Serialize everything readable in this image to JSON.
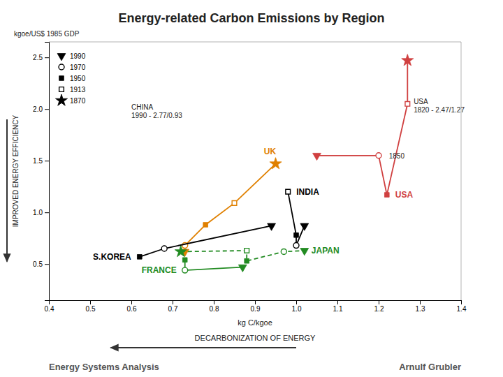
{
  "chart_data": {
    "type": "line",
    "title": "Energy-related Carbon Emissions by Region",
    "xlabel": "kg C/kgoe",
    "xlabel2": "DECARBONIZATION OF ENERGY",
    "ylabel": "IMPROVED ENERGY EFFICIENCY",
    "ylabel_unit": "kgoe/US$ 1985 GDP",
    "footer_left": "Energy Systems Analysis",
    "footer_right": "Arnulf Grubler",
    "xlim": [
      0.4,
      1.4
    ],
    "ylim": [
      0.15,
      2.65
    ],
    "xticks": [
      0.4,
      0.5,
      0.6,
      0.7,
      0.8,
      0.9,
      {
        "value": 1.0,
        "label": "1.0"
      },
      1.1,
      1.2,
      1.3,
      1.4
    ],
    "yticks": [
      0.5,
      {
        "value": 1.0,
        "label": "1.0"
      },
      1.5,
      {
        "value": 2.0,
        "label": "2.0"
      },
      2.5
    ],
    "grid": false,
    "marker_legend": [
      {
        "year": 1990,
        "marker": "triangle-down"
      },
      {
        "year": 1970,
        "marker": "circle-open"
      },
      {
        "year": 1950,
        "marker": "square"
      },
      {
        "year": 1913,
        "marker": "square-open"
      },
      {
        "year": 1870,
        "marker": "star"
      }
    ],
    "series": [
      {
        "name": "USA",
        "color": "#d04040",
        "line_style": "solid",
        "years": [
          1870,
          1913,
          1950,
          1970,
          1990
        ],
        "x": [
          1.27,
          1.27,
          1.22,
          1.2,
          1.05
        ],
        "values": [
          2.47,
          2.05,
          1.17,
          1.55,
          1.55
        ]
      },
      {
        "name": "UK",
        "color": "#e08000",
        "line_style": "solid",
        "years": [
          1870,
          1913,
          1950,
          1970,
          1990
        ],
        "x": [
          0.95,
          0.85,
          0.78,
          0.73,
          0.73
        ],
        "values": [
          1.47,
          1.09,
          0.88,
          0.68,
          0.62
        ]
      },
      {
        "name": "INDIA",
        "color": "#000000",
        "line_style": "solid",
        "years": [
          1913,
          1950,
          1970,
          1990
        ],
        "x": [
          0.98,
          1.0,
          1.0,
          1.02
        ],
        "values": [
          1.2,
          0.78,
          0.68,
          0.87
        ]
      },
      {
        "name": "JAPAN",
        "color": "#228B22",
        "line_style": "dashed",
        "years": [
          1870,
          1913,
          1950,
          1970,
          1990
        ],
        "x": [
          0.72,
          0.88,
          0.88,
          0.97,
          1.02
        ],
        "values": [
          0.62,
          0.63,
          0.53,
          0.62,
          0.63
        ]
      },
      {
        "name": "S.KOREA",
        "color": "#000000",
        "line_style": "solid",
        "years": [
          1950,
          1970,
          1990
        ],
        "x": [
          0.62,
          0.68,
          0.94
        ],
        "values": [
          0.57,
          0.65,
          0.87
        ]
      },
      {
        "name": "FRANCE",
        "color": "#228B22",
        "line_style": "solid",
        "years": [
          1950,
          1970,
          1990
        ],
        "x": [
          0.73,
          0.73,
          0.87
        ],
        "values": [
          0.54,
          0.44,
          0.47
        ]
      }
    ],
    "annotations": [
      {
        "text": "1850",
        "x": 1.225,
        "y": 1.52
      },
      {
        "text": "CHINA\n1990 - 2.77/0.93",
        "x": 0.6,
        "y": 2.05
      },
      {
        "text": "USA\n1820 - 2.47/1.27",
        "x": 1.285,
        "y": 2.1
      }
    ]
  }
}
